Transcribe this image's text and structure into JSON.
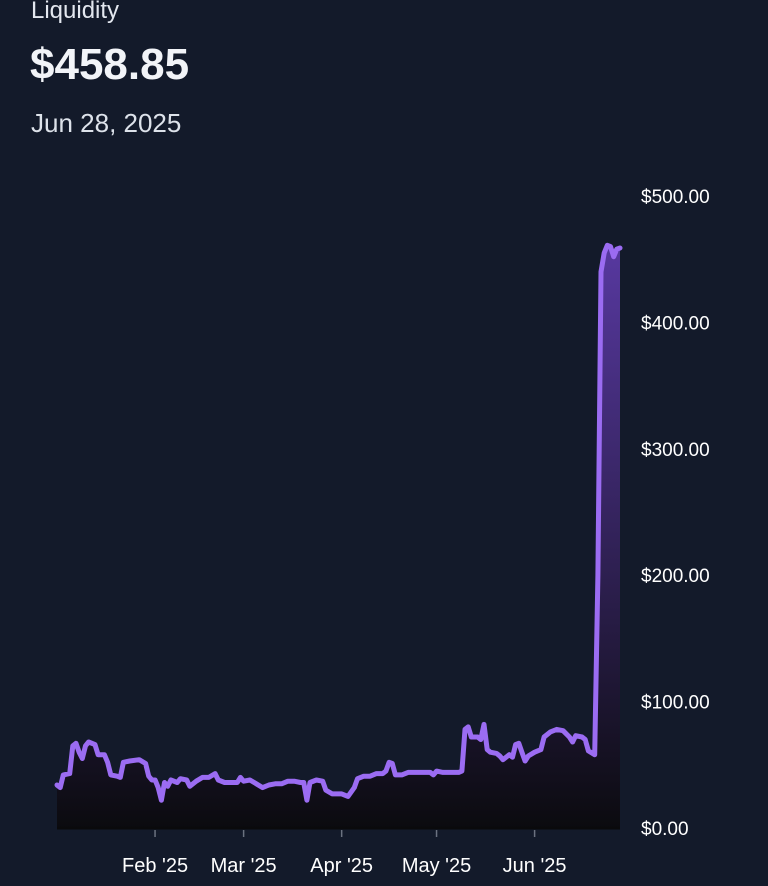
{
  "header": {
    "label": "Liquidity",
    "value": "$458.85",
    "date": "Jun 28, 2025"
  },
  "colors": {
    "background": "#131a2a",
    "line": "#9b6cf2",
    "area_top": "#5b3aa6",
    "area_bottom": "#0b0b0f",
    "baseline": "#0a0a0c"
  },
  "chart_data": {
    "type": "area",
    "title": "Liquidity",
    "ylim": [
      0,
      500
    ],
    "y_axis_position": "right",
    "y_ticks": [
      "$0.00",
      "$100.00",
      "$200.00",
      "$300.00",
      "$400.00",
      "$500.00"
    ],
    "y_tick_values": [
      0,
      100,
      200,
      300,
      400,
      500
    ],
    "x_ticks": [
      {
        "label": "Feb '25",
        "date": "2025-02-01"
      },
      {
        "label": "Mar '25",
        "date": "2025-03-01"
      },
      {
        "label": "Apr '25",
        "date": "2025-04-01"
      },
      {
        "label": "May '25",
        "date": "2025-05-01"
      },
      {
        "label": "Jun '25",
        "date": "2025-06-01"
      }
    ],
    "xlim": [
      "2025-01-01",
      "2025-06-28"
    ],
    "series": [
      {
        "values": [
          [
            "2025-01-01",
            34
          ],
          [
            "2025-01-02",
            32
          ],
          [
            "2025-01-03",
            42
          ],
          [
            "2025-01-05",
            43
          ],
          [
            "2025-01-06",
            65
          ],
          [
            "2025-01-07",
            67
          ],
          [
            "2025-01-08",
            60
          ],
          [
            "2025-01-09",
            55
          ],
          [
            "2025-01-10",
            65
          ],
          [
            "2025-01-11",
            68
          ],
          [
            "2025-01-13",
            66
          ],
          [
            "2025-01-14",
            58
          ],
          [
            "2025-01-16",
            58
          ],
          [
            "2025-01-17",
            52
          ],
          [
            "2025-01-18",
            42
          ],
          [
            "2025-01-20",
            41
          ],
          [
            "2025-01-21",
            40
          ],
          [
            "2025-01-22",
            52
          ],
          [
            "2025-01-24",
            53
          ],
          [
            "2025-01-27",
            54
          ],
          [
            "2025-01-29",
            51
          ],
          [
            "2025-01-30",
            41
          ],
          [
            "2025-01-31",
            38
          ],
          [
            "2025-02-01",
            38
          ],
          [
            "2025-02-02",
            32
          ],
          [
            "2025-02-03",
            22
          ],
          [
            "2025-02-04",
            36
          ],
          [
            "2025-02-05",
            33
          ],
          [
            "2025-02-06",
            38
          ],
          [
            "2025-02-08",
            36
          ],
          [
            "2025-02-09",
            39
          ],
          [
            "2025-02-11",
            38
          ],
          [
            "2025-02-12",
            33
          ],
          [
            "2025-02-14",
            37
          ],
          [
            "2025-02-16",
            40
          ],
          [
            "2025-02-18",
            40
          ],
          [
            "2025-02-20",
            43
          ],
          [
            "2025-02-21",
            38
          ],
          [
            "2025-02-23",
            36
          ],
          [
            "2025-02-25",
            36
          ],
          [
            "2025-02-27",
            36
          ],
          [
            "2025-02-28",
            40
          ],
          [
            "2025-03-01",
            37
          ],
          [
            "2025-03-03",
            38
          ],
          [
            "2025-03-05",
            35
          ],
          [
            "2025-03-07",
            32
          ],
          [
            "2025-03-09",
            34
          ],
          [
            "2025-03-11",
            35
          ],
          [
            "2025-03-13",
            35
          ],
          [
            "2025-03-15",
            37
          ],
          [
            "2025-03-17",
            37
          ],
          [
            "2025-03-19",
            36
          ],
          [
            "2025-03-20",
            36
          ],
          [
            "2025-03-21",
            22
          ],
          [
            "2025-03-22",
            36
          ],
          [
            "2025-03-24",
            38
          ],
          [
            "2025-03-26",
            37
          ],
          [
            "2025-03-27",
            30
          ],
          [
            "2025-03-29",
            27
          ],
          [
            "2025-04-01",
            27
          ],
          [
            "2025-04-03",
            25
          ],
          [
            "2025-04-05",
            32
          ],
          [
            "2025-04-06",
            39
          ],
          [
            "2025-04-08",
            41
          ],
          [
            "2025-04-10",
            41
          ],
          [
            "2025-04-12",
            43
          ],
          [
            "2025-04-14",
            43
          ],
          [
            "2025-04-15",
            45
          ],
          [
            "2025-04-16",
            52
          ],
          [
            "2025-04-17",
            51
          ],
          [
            "2025-04-18",
            42
          ],
          [
            "2025-04-20",
            42
          ],
          [
            "2025-04-22",
            44
          ],
          [
            "2025-04-24",
            44
          ],
          [
            "2025-04-27",
            44
          ],
          [
            "2025-04-29",
            44
          ],
          [
            "2025-04-30",
            42
          ],
          [
            "2025-05-01",
            45
          ],
          [
            "2025-05-03",
            44
          ],
          [
            "2025-05-06",
            44
          ],
          [
            "2025-05-08",
            44
          ],
          [
            "2025-05-09",
            45
          ],
          [
            "2025-05-10",
            78
          ],
          [
            "2025-05-11",
            80
          ],
          [
            "2025-05-12",
            72
          ],
          [
            "2025-05-14",
            72
          ],
          [
            "2025-05-15",
            70
          ],
          [
            "2025-05-16",
            82
          ],
          [
            "2025-05-17",
            62
          ],
          [
            "2025-05-18",
            60
          ],
          [
            "2025-05-20",
            59
          ],
          [
            "2025-05-21",
            57
          ],
          [
            "2025-05-22",
            54
          ],
          [
            "2025-05-24",
            58
          ],
          [
            "2025-05-25",
            56
          ],
          [
            "2025-05-26",
            66
          ],
          [
            "2025-05-27",
            67
          ],
          [
            "2025-05-28",
            60
          ],
          [
            "2025-05-29",
            53
          ],
          [
            "2025-05-30",
            57
          ],
          [
            "2025-06-01",
            60
          ],
          [
            "2025-06-03",
            62
          ],
          [
            "2025-06-04",
            72
          ],
          [
            "2025-06-06",
            76
          ],
          [
            "2025-06-08",
            78
          ],
          [
            "2025-06-10",
            77
          ],
          [
            "2025-06-12",
            72
          ],
          [
            "2025-06-13",
            68
          ],
          [
            "2025-06-14",
            73
          ],
          [
            "2025-06-16",
            72
          ],
          [
            "2025-06-17",
            70
          ],
          [
            "2025-06-18",
            61
          ],
          [
            "2025-06-20",
            58
          ],
          [
            "2025-06-21",
            200
          ],
          [
            "2025-06-22",
            440
          ],
          [
            "2025-06-23",
            455
          ],
          [
            "2025-06-24",
            461
          ],
          [
            "2025-06-25",
            460
          ],
          [
            "2025-06-26",
            452
          ],
          [
            "2025-06-27",
            458
          ],
          [
            "2025-06-28",
            458.85
          ]
        ]
      }
    ]
  }
}
